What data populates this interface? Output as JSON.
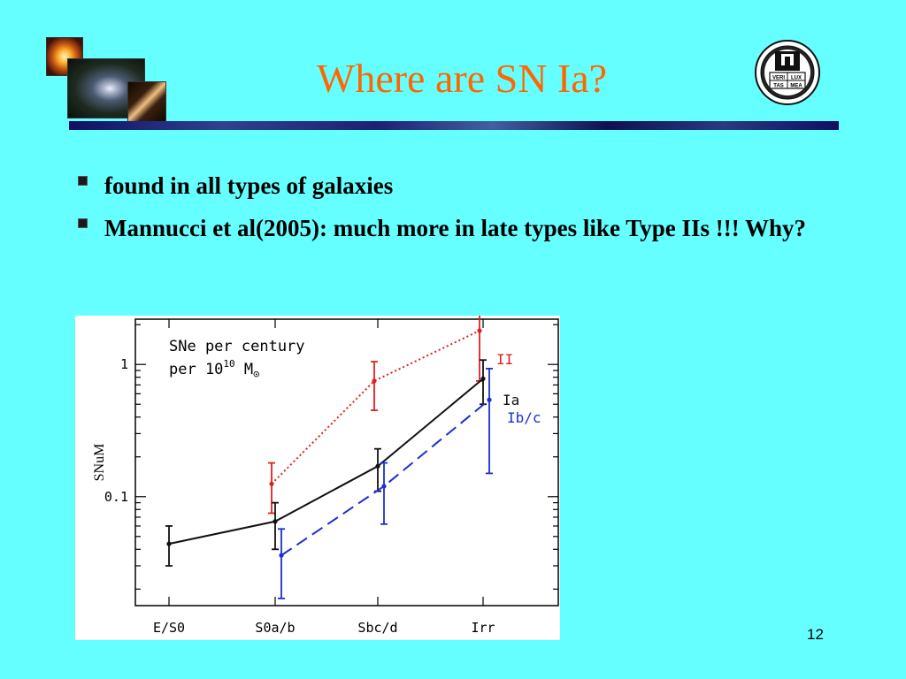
{
  "slide": {
    "title": "Where are SN Ia?",
    "page_number": "12",
    "accent_color": "#ff6600",
    "background_color": "#66ffff"
  },
  "bullets": [
    {
      "text": "found in all types of galaxies"
    },
    {
      "text": "Mannucci et al(2005): much more in late types like Type IIs !!! Why?"
    }
  ],
  "seal": {
    "lettering": [
      "VERI",
      "LUX",
      "TAS",
      "MEA"
    ]
  },
  "chart_data": {
    "type": "line",
    "ylabel": "SNuM",
    "yscale": "log",
    "ylim": [
      0.015,
      2.2
    ],
    "y_ticks": [
      {
        "value": 0.1,
        "label": "0.1"
      },
      {
        "value": 1,
        "label": "1"
      }
    ],
    "categories": [
      "E/S0",
      "S0a/b",
      "Sbc/d",
      "Irr"
    ],
    "annotation": {
      "line1": "SNe per century",
      "line2_prefix": "per 10",
      "line2_sup": "10",
      "line2_suffix": " M",
      "line2_sun": "⊙"
    },
    "grid": false,
    "series": [
      {
        "name": "II",
        "color": "#e02020",
        "line_style": "dotted",
        "points": [
          {
            "category": "S0a/b",
            "y": 0.125,
            "lo": 0.075,
            "hi": 0.18
          },
          {
            "category": "Sbc/d",
            "y": 0.75,
            "lo": 0.45,
            "hi": 1.05
          },
          {
            "category": "Irr",
            "y": 1.8,
            "lo": 0.75,
            "hi": 2.9
          }
        ]
      },
      {
        "name": "Ia",
        "color": "#111111",
        "line_style": "solid",
        "points": [
          {
            "category": "E/S0",
            "y": 0.044,
            "lo": 0.03,
            "hi": 0.06
          },
          {
            "category": "S0a/b",
            "y": 0.065,
            "lo": 0.04,
            "hi": 0.09
          },
          {
            "category": "Sbc/d",
            "y": 0.17,
            "lo": 0.11,
            "hi": 0.23
          },
          {
            "category": "Irr",
            "y": 0.78,
            "lo": 0.5,
            "hi": 1.08
          }
        ]
      },
      {
        "name": "Ib/c",
        "color": "#1a2fd0",
        "line_style": "dashed",
        "points": [
          {
            "category": "S0a/b",
            "y": 0.036,
            "lo": 0.017,
            "hi": 0.057
          },
          {
            "category": "Sbc/d",
            "y": 0.12,
            "lo": 0.062,
            "hi": 0.18
          },
          {
            "category": "Irr",
            "y": 0.54,
            "lo": 0.15,
            "hi": 0.93
          }
        ]
      }
    ]
  }
}
